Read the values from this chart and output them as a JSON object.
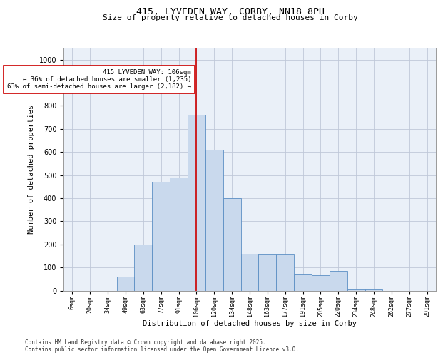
{
  "title_line1": "415, LYVEDEN WAY, CORBY, NN18 8PH",
  "title_line2": "Size of property relative to detached houses in Corby",
  "xlabel": "Distribution of detached houses by size in Corby",
  "ylabel": "Number of detached properties",
  "bins": [
    "6sqm",
    "20sqm",
    "34sqm",
    "49sqm",
    "63sqm",
    "77sqm",
    "91sqm",
    "106sqm",
    "120sqm",
    "134sqm",
    "148sqm",
    "163sqm",
    "177sqm",
    "191sqm",
    "205sqm",
    "220sqm",
    "234sqm",
    "248sqm",
    "262sqm",
    "277sqm",
    "291sqm"
  ],
  "bar_heights": [
    0,
    0,
    0,
    60,
    200,
    470,
    490,
    760,
    610,
    400,
    160,
    155,
    155,
    70,
    65,
    85,
    5,
    5,
    0,
    0,
    0
  ],
  "bar_color": "#c9d9ed",
  "bar_edge_color": "#5b8ec4",
  "grid_color": "#c0c8d8",
  "background_color": "#eaf0f8",
  "vline_x_index": 7,
  "vline_color": "#cc0000",
  "annotation_text": "415 LYVEDEN WAY: 106sqm\n← 36% of detached houses are smaller (1,235)\n63% of semi-detached houses are larger (2,182) →",
  "annotation_box_color": "white",
  "annotation_box_edge": "#cc0000",
  "ylim": [
    0,
    1050
  ],
  "yticks": [
    0,
    100,
    200,
    300,
    400,
    500,
    600,
    700,
    800,
    900,
    1000
  ],
  "footnote": "Contains HM Land Registry data © Crown copyright and database right 2025.\nContains public sector information licensed under the Open Government Licence v3.0."
}
